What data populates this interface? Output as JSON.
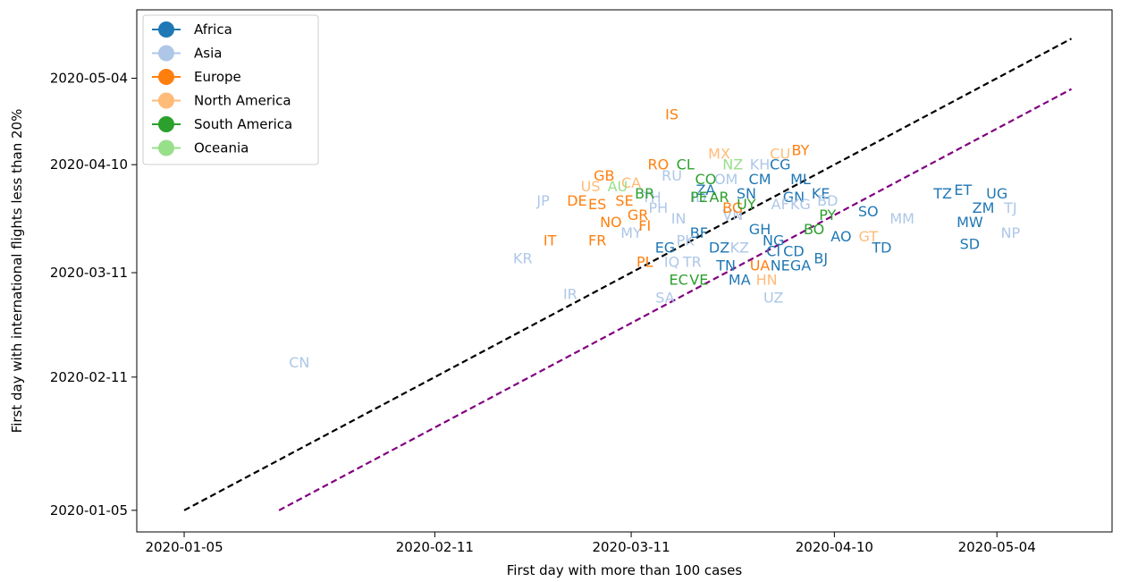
{
  "chart_data": {
    "type": "scatter",
    "xlabel": "First day with more than 100 cases",
    "ylabel": "First day with international flights less than 20%",
    "x_ticks": [
      "2020-01-05",
      "2020-02-11",
      "2020-03-11",
      "2020-04-10",
      "2020-05-04"
    ],
    "y_ticks": [
      "2020-01-05",
      "2020-02-11",
      "2020-03-11",
      "2020-04-10",
      "2020-05-04"
    ],
    "xlim": [
      "2019-12-29",
      "2020-05-21"
    ],
    "ylim": [
      "2019-12-30",
      "2020-05-23"
    ],
    "grid": false,
    "legend_position": "top-left",
    "series": [
      {
        "name": "Africa",
        "color": "#1f77b4",
        "points": [
          {
            "label": "CG",
            "x": "2020-04-02",
            "y": "2020-04-10"
          },
          {
            "label": "CM",
            "x": "2020-03-30",
            "y": "2020-04-06"
          },
          {
            "label": "ML",
            "x": "2020-04-05",
            "y": "2020-04-06"
          },
          {
            "label": "SN",
            "x": "2020-03-28",
            "y": "2020-04-02"
          },
          {
            "label": "KE",
            "x": "2020-04-08",
            "y": "2020-04-02"
          },
          {
            "label": "GN",
            "x": "2020-04-04",
            "y": "2020-04-01"
          },
          {
            "label": "ZA",
            "x": "2020-03-22",
            "y": "2020-04-03"
          },
          {
            "label": "SO",
            "x": "2020-04-15",
            "y": "2020-03-28"
          },
          {
            "label": "TZ",
            "x": "2020-04-26",
            "y": "2020-04-02"
          },
          {
            "label": "ET",
            "x": "2020-04-29",
            "y": "2020-04-03"
          },
          {
            "label": "UG",
            "x": "2020-05-04",
            "y": "2020-04-02"
          },
          {
            "label": "ZM",
            "x": "2020-05-02",
            "y": "2020-03-29"
          },
          {
            "label": "MW",
            "x": "2020-04-30",
            "y": "2020-03-25"
          },
          {
            "label": "SD",
            "x": "2020-04-30",
            "y": "2020-03-19"
          },
          {
            "label": "TD",
            "x": "2020-04-17",
            "y": "2020-03-18"
          },
          {
            "label": "GH",
            "x": "2020-03-30",
            "y": "2020-03-23"
          },
          {
            "label": "BF",
            "x": "2020-03-21",
            "y": "2020-03-22"
          },
          {
            "label": "NG",
            "x": "2020-04-01",
            "y": "2020-03-20"
          },
          {
            "label": "AO",
            "x": "2020-04-11",
            "y": "2020-03-21"
          },
          {
            "label": "EG",
            "x": "2020-03-16",
            "y": "2020-03-18"
          },
          {
            "label": "DZ",
            "x": "2020-03-24",
            "y": "2020-03-18"
          },
          {
            "label": "CI",
            "x": "2020-04-01",
            "y": "2020-03-17"
          },
          {
            "label": "CD",
            "x": "2020-04-04",
            "y": "2020-03-17"
          },
          {
            "label": "BJ",
            "x": "2020-04-08",
            "y": "2020-03-15"
          },
          {
            "label": "TN",
            "x": "2020-03-25",
            "y": "2020-03-13"
          },
          {
            "label": "NE",
            "x": "2020-04-02",
            "y": "2020-03-13"
          },
          {
            "label": "GA",
            "x": "2020-04-05",
            "y": "2020-03-13"
          },
          {
            "label": "MA",
            "x": "2020-03-27",
            "y": "2020-03-09"
          }
        ]
      },
      {
        "name": "Asia",
        "color": "#aec7e8",
        "points": [
          {
            "label": "CN",
            "x": "2020-01-22",
            "y": "2020-02-15"
          },
          {
            "label": "KR",
            "x": "2020-02-24",
            "y": "2020-03-15"
          },
          {
            "label": "JP",
            "x": "2020-02-27",
            "y": "2020-03-31"
          },
          {
            "label": "IR",
            "x": "2020-03-02",
            "y": "2020-03-05"
          },
          {
            "label": "MY",
            "x": "2020-03-11",
            "y": "2020-03-22"
          },
          {
            "label": "TH",
            "x": "2020-03-14",
            "y": "2020-04-01"
          },
          {
            "label": "PH",
            "x": "2020-03-15",
            "y": "2020-03-29"
          },
          {
            "label": "IN",
            "x": "2020-03-18",
            "y": "2020-03-26"
          },
          {
            "label": "PK",
            "x": "2020-03-19",
            "y": "2020-03-20"
          },
          {
            "label": "IQ",
            "x": "2020-03-17",
            "y": "2020-03-14"
          },
          {
            "label": "TR",
            "x": "2020-03-20",
            "y": "2020-03-14"
          },
          {
            "label": "SA",
            "x": "2020-03-16",
            "y": "2020-03-04"
          },
          {
            "label": "RU",
            "x": "2020-03-17",
            "y": "2020-04-07"
          },
          {
            "label": "ID",
            "x": "2020-03-21",
            "y": "2020-04-01"
          },
          {
            "label": "OM",
            "x": "2020-03-25",
            "y": "2020-04-06"
          },
          {
            "label": "KH",
            "x": "2020-03-30",
            "y": "2020-04-10"
          },
          {
            "label": "VN",
            "x": "2020-03-26",
            "y": "2020-03-27"
          },
          {
            "label": "KZ",
            "x": "2020-03-27",
            "y": "2020-03-18"
          },
          {
            "label": "AF",
            "x": "2020-04-02",
            "y": "2020-03-30"
          },
          {
            "label": "KG",
            "x": "2020-04-05",
            "y": "2020-03-30"
          },
          {
            "label": "BD",
            "x": "2020-04-09",
            "y": "2020-03-31"
          },
          {
            "label": "MM",
            "x": "2020-04-20",
            "y": "2020-03-26"
          },
          {
            "label": "UZ",
            "x": "2020-04-01",
            "y": "2020-03-04"
          },
          {
            "label": "TJ",
            "x": "2020-05-06",
            "y": "2020-03-29"
          },
          {
            "label": "NP",
            "x": "2020-05-06",
            "y": "2020-03-22"
          }
        ]
      },
      {
        "name": "Europe",
        "color": "#ff7f0e",
        "points": [
          {
            "label": "IS",
            "x": "2020-03-17",
            "y": "2020-04-24"
          },
          {
            "label": "BY",
            "x": "2020-04-05",
            "y": "2020-04-14"
          },
          {
            "label": "RO",
            "x": "2020-03-15",
            "y": "2020-04-10"
          },
          {
            "label": "GB",
            "x": "2020-03-07",
            "y": "2020-04-07"
          },
          {
            "label": "SE",
            "x": "2020-03-10",
            "y": "2020-03-31"
          },
          {
            "label": "DE",
            "x": "2020-03-03",
            "y": "2020-03-31"
          },
          {
            "label": "ES",
            "x": "2020-03-06",
            "y": "2020-03-30"
          },
          {
            "label": "NO",
            "x": "2020-03-08",
            "y": "2020-03-25"
          },
          {
            "label": "GR",
            "x": "2020-03-12",
            "y": "2020-03-27"
          },
          {
            "label": "FI",
            "x": "2020-03-13",
            "y": "2020-03-24"
          },
          {
            "label": "IT",
            "x": "2020-02-28",
            "y": "2020-03-20"
          },
          {
            "label": "FR",
            "x": "2020-03-06",
            "y": "2020-03-20"
          },
          {
            "label": "PL",
            "x": "2020-03-13",
            "y": "2020-03-14"
          },
          {
            "label": "BG",
            "x": "2020-03-26",
            "y": "2020-03-29"
          },
          {
            "label": "UA",
            "x": "2020-03-30",
            "y": "2020-03-13"
          }
        ]
      },
      {
        "name": "North America",
        "color": "#ffbb78",
        "points": [
          {
            "label": "MX",
            "x": "2020-03-24",
            "y": "2020-04-13"
          },
          {
            "label": "CU",
            "x": "2020-04-02",
            "y": "2020-04-13"
          },
          {
            "label": "CA",
            "x": "2020-03-11",
            "y": "2020-04-05"
          },
          {
            "label": "US",
            "x": "2020-03-05",
            "y": "2020-04-04"
          },
          {
            "label": "GT",
            "x": "2020-04-15",
            "y": "2020-03-21"
          },
          {
            "label": "HN",
            "x": "2020-03-31",
            "y": "2020-03-09"
          }
        ]
      },
      {
        "name": "South America",
        "color": "#2ca02c",
        "points": [
          {
            "label": "CL",
            "x": "2020-03-19",
            "y": "2020-04-10"
          },
          {
            "label": "CO",
            "x": "2020-03-22",
            "y": "2020-04-06"
          },
          {
            "label": "BR",
            "x": "2020-03-13",
            "y": "2020-04-02"
          },
          {
            "label": "PE",
            "x": "2020-03-21",
            "y": "2020-04-01"
          },
          {
            "label": "AR",
            "x": "2020-03-24",
            "y": "2020-04-01"
          },
          {
            "label": "UY",
            "x": "2020-03-28",
            "y": "2020-03-30"
          },
          {
            "label": "PY",
            "x": "2020-04-09",
            "y": "2020-03-27"
          },
          {
            "label": "BO",
            "x": "2020-04-07",
            "y": "2020-03-23"
          },
          {
            "label": "EC",
            "x": "2020-03-18",
            "y": "2020-03-09"
          },
          {
            "label": "VE",
            "x": "2020-03-21",
            "y": "2020-03-09"
          }
        ]
      },
      {
        "name": "Oceania",
        "color": "#98df8a",
        "points": [
          {
            "label": "NZ",
            "x": "2020-03-26",
            "y": "2020-04-10"
          },
          {
            "label": "AU",
            "x": "2020-03-09",
            "y": "2020-04-04"
          }
        ]
      }
    ],
    "reference_lines": [
      {
        "color": "#000000",
        "style": "dashed",
        "from": {
          "x": "2020-01-05",
          "y": "2020-01-05"
        },
        "to": {
          "x": "2020-05-15",
          "y": "2020-05-15"
        }
      },
      {
        "color": "#800080",
        "style": "dashed",
        "from": {
          "x": "2020-01-19",
          "y": "2020-01-05"
        },
        "to": {
          "x": "2020-05-15",
          "y": "2020-05-01"
        }
      }
    ]
  }
}
